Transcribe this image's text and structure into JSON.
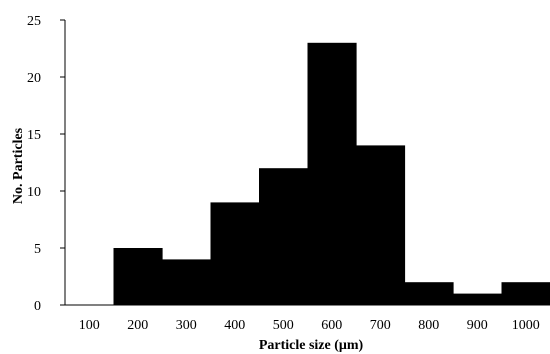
{
  "chart_data": {
    "type": "bar",
    "title": "",
    "xlabel": "Particle size (μm)",
    "ylabel": "No. Particles",
    "categories": [
      "100",
      "200",
      "300",
      "400",
      "500",
      "600",
      "700",
      "800",
      "900",
      "1000"
    ],
    "values": [
      0,
      5,
      4,
      9,
      12,
      23,
      14,
      2,
      1,
      2
    ],
    "ylim": [
      0,
      25
    ],
    "yticks": [
      "0",
      "5",
      "10",
      "15",
      "20",
      "25"
    ],
    "bar_color": "#000000",
    "grid": false,
    "legend": "none"
  }
}
